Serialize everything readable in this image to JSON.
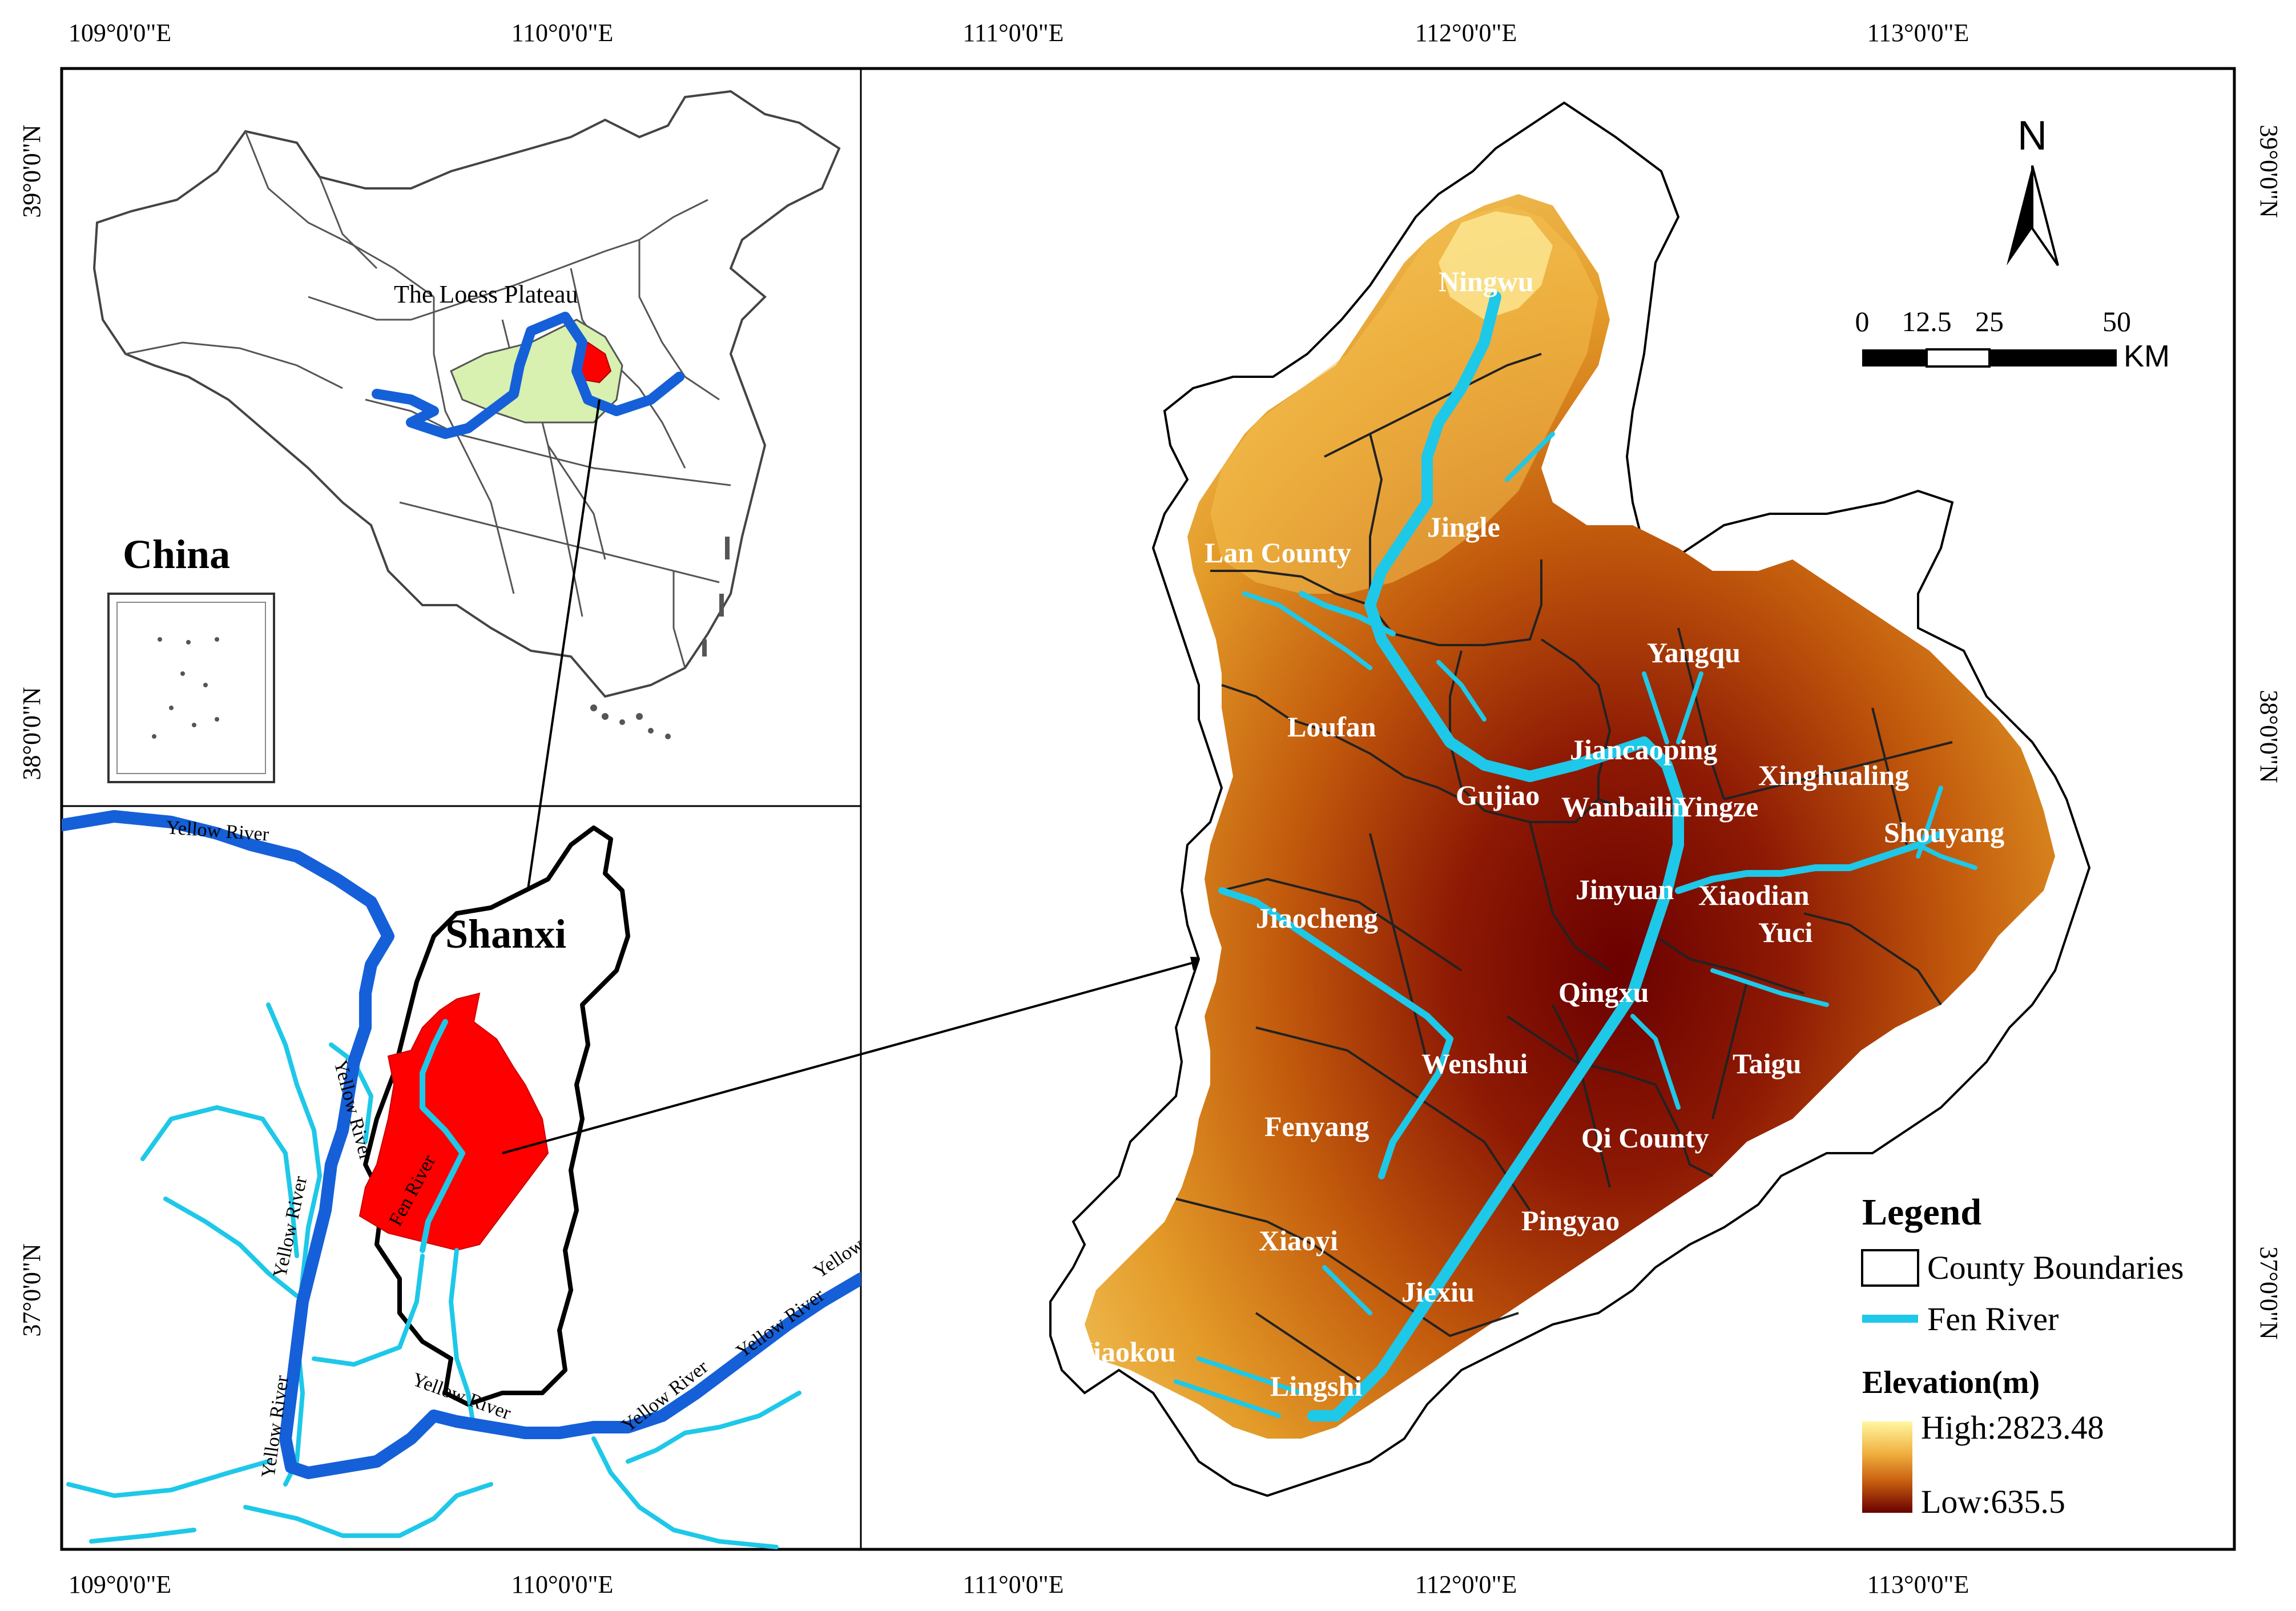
{
  "coordinates": {
    "top": [
      "109°0'0\"E",
      "110°0'0\"E",
      "111°0'0\"E",
      "112°0'0\"E",
      "113°0'0\"E"
    ],
    "bottom": [
      "109°0'0\"E",
      "110°0'0\"E",
      "111°0'0\"E",
      "112°0'0\"E",
      "113°0'0\"E"
    ],
    "left": [
      "39°0'0\"N",
      "38°0'0\"N",
      "37°0'0\"N"
    ],
    "right": [
      "39°0'0\"N",
      "38°0'0\"N",
      "37°0'0\"N"
    ]
  },
  "inset_china": {
    "title": "China",
    "plateau_label": "The Loess Plateau"
  },
  "inset_shanxi": {
    "title": "Shanxi",
    "fen_label": "Fen River",
    "yellow_labels": [
      "Yellow River",
      "Yellow River",
      "Yellow River",
      "Yellow River",
      "Yellow River",
      "Yellow River",
      "Yellow River",
      "Yellow River"
    ]
  },
  "counties": [
    {
      "name": "Ningwu"
    },
    {
      "name": "Jingle"
    },
    {
      "name": "Lan County"
    },
    {
      "name": "Yangqu"
    },
    {
      "name": "Loufan"
    },
    {
      "name": "Jiancaoping"
    },
    {
      "name": "Xinghualing"
    },
    {
      "name": "Gujiao"
    },
    {
      "name": "Wanbailin"
    },
    {
      "name": "Yingze"
    },
    {
      "name": "Shouyang"
    },
    {
      "name": "Jinyuan"
    },
    {
      "name": "Xiaodian"
    },
    {
      "name": "Jiaocheng"
    },
    {
      "name": "Yuci"
    },
    {
      "name": "Qingxu"
    },
    {
      "name": "Wenshui"
    },
    {
      "name": "Taigu"
    },
    {
      "name": "Fenyang"
    },
    {
      "name": "Qi County"
    },
    {
      "name": "Pingyao"
    },
    {
      "name": "Xiaoyi"
    },
    {
      "name": "Jiexiu"
    },
    {
      "name": "Jiaokou"
    },
    {
      "name": "Lingshi"
    }
  ],
  "north_arrow": {
    "label": "N"
  },
  "scale_bar": {
    "ticks": [
      "0",
      "12.5",
      "25",
      "50"
    ],
    "unit": "KM"
  },
  "legend": {
    "title": "Legend",
    "county_boundaries": "County Boundaries",
    "fen_river": "Fen River",
    "elevation_title": "Elevation(m)",
    "high": "High:2823.48",
    "low": "Low:635.5"
  },
  "colors": {
    "river": "#1ec8e8",
    "yellow_river": "#1560d8",
    "shanxi_basin": "#ff0000",
    "plateau": "#d8f0b0",
    "elev_high": "#fff8a0",
    "elev_mid": "#d97a10",
    "elev_low": "#6a0000"
  }
}
